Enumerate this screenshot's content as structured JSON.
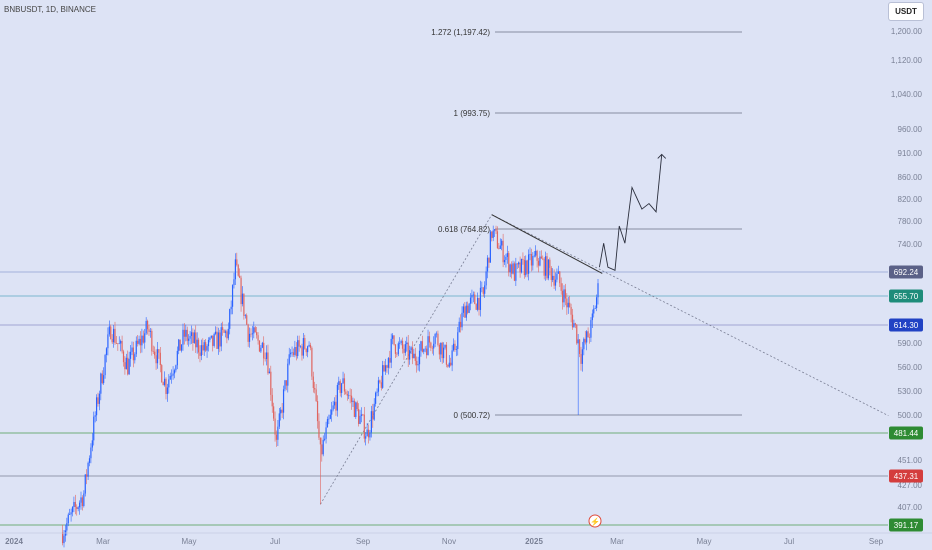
{
  "header": {
    "symbol": "BNBUSDT, 1D, BINANCE",
    "currency": "USDT"
  },
  "colors": {
    "background": "#dde3f5",
    "bull": "#2962ff",
    "bear": "#e0645f",
    "axis_text": "#7a8196"
  },
  "chart_data": {
    "type": "candlestick",
    "title": "",
    "xlabel": "",
    "ylabel": "",
    "ylim": [
      385,
      1230
    ],
    "y_ticks": [
      "1,200.00",
      "1,120.00",
      "1,040.00",
      "960.00",
      "910.00",
      "860.00",
      "820.00",
      "780.00",
      "740.00",
      "590.00",
      "560.00",
      "530.00",
      "500.00",
      "451.00",
      "427.00",
      "407.00"
    ],
    "x_ticks": [
      "2024",
      "Mar",
      "May",
      "Jul",
      "Sep",
      "Nov",
      "2025",
      "Mar",
      "May",
      "Jul",
      "Sep"
    ],
    "price_path": [
      [
        "2024-02-05",
        385
      ],
      [
        "2024-02-20",
        420
      ],
      [
        "2024-02-28",
        500
      ],
      [
        "2024-03-10",
        610
      ],
      [
        "2024-03-22",
        560
      ],
      [
        "2024-04-05",
        610
      ],
      [
        "2024-04-18",
        535
      ],
      [
        "2024-05-01",
        600
      ],
      [
        "2024-05-15",
        580
      ],
      [
        "2024-06-01",
        605
      ],
      [
        "2024-06-06",
        700
      ],
      [
        "2024-06-15",
        605
      ],
      [
        "2024-06-28",
        580
      ],
      [
        "2024-07-05",
        470
      ],
      [
        "2024-07-15",
        575
      ],
      [
        "2024-07-28",
        590
      ],
      [
        "2024-08-05",
        458
      ],
      [
        "2024-08-20",
        540
      ],
      [
        "2024-09-07",
        480
      ],
      [
        "2024-09-25",
        590
      ],
      [
        "2024-10-10",
        570
      ],
      [
        "2024-10-25",
        600
      ],
      [
        "2024-11-05",
        560
      ],
      [
        "2024-11-15",
        640
      ],
      [
        "2024-11-28",
        655
      ],
      [
        "2024-12-04",
        760
      ],
      [
        "2024-12-20",
        690
      ],
      [
        "2025-01-05",
        715
      ],
      [
        "2025-01-20",
        680
      ],
      [
        "2025-02-01",
        610
      ],
      [
        "2025-02-05",
        575
      ],
      [
        "2025-02-12",
        610
      ],
      [
        "2025-02-17",
        665
      ]
    ],
    "wicks": [
      {
        "date": "2024-08-05",
        "low": 410
      },
      {
        "date": "2025-02-03",
        "low": 500.72
      }
    ],
    "fibonacci": [
      {
        "level": "0",
        "price": 500.72,
        "label": "0 (500.72)"
      },
      {
        "level": "0.618",
        "price": 764.82,
        "label": "0.618 (764.82)"
      },
      {
        "level": "1",
        "price": 993.75,
        "label": "1 (993.75)"
      },
      {
        "level": "1.272",
        "price": 1197.42,
        "label": "1.272 (1,197.42)"
      }
    ],
    "horizontal_levels": [
      {
        "price": 692.24,
        "label": "692.24",
        "color": "#5b6187",
        "line": "#8fa2d0"
      },
      {
        "price": 655.7,
        "label": "655.70",
        "color": "#1e8c7a",
        "line": "#5aa8c2"
      },
      {
        "price": 614.3,
        "label": "614.30",
        "color": "#2142c4",
        "line": "#8d92c8"
      },
      {
        "price": 481.44,
        "label": "481.44",
        "color": "#2e8b33",
        "line": "#4b9a4f"
      },
      {
        "price": 437.31,
        "label": "437.31",
        "color": "#d43d3d",
        "line": "#7a7f95"
      },
      {
        "price": 391.17,
        "label": "391.17",
        "color": "#2e8b33",
        "line": "#4b9a4f"
      }
    ],
    "trendlines": [
      {
        "from": [
          "2024-08-05",
          410
        ],
        "to": [
          "2024-12-04",
          790
        ],
        "style": "dotted"
      },
      {
        "from": [
          "2024-12-04",
          790
        ],
        "to": [
          "2025-09-10",
          500
        ],
        "style": "dotted"
      },
      {
        "from": [
          "2024-12-04",
          790
        ],
        "to": [
          "2025-02-20",
          690
        ],
        "style": "solid"
      }
    ],
    "projection": [
      [
        "2025-02-18",
        700
      ],
      [
        "2025-02-21",
        740
      ],
      [
        "2025-02-24",
        700
      ],
      [
        "2025-03-01",
        695
      ],
      [
        "2025-03-04",
        770
      ],
      [
        "2025-03-08",
        740
      ],
      [
        "2025-03-13",
        840
      ],
      [
        "2025-03-20",
        800
      ],
      [
        "2025-03-25",
        810
      ],
      [
        "2025-03-30",
        795
      ],
      [
        "2025-04-03",
        905
      ]
    ],
    "lollipop_marker": "⚡"
  }
}
